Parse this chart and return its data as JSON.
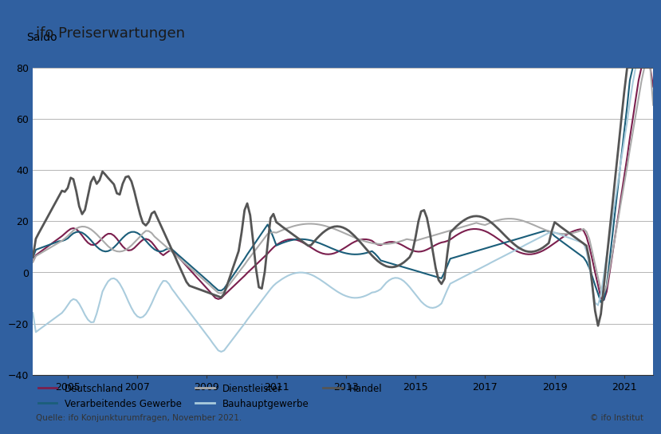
{
  "title": "ifo Preiserwartungen",
  "ylabel": "Saldo",
  "source": "Quelle: ifo Konjunkturumfragen, November 2021.",
  "copyright": "© ifo Institut",
  "ylim": [
    -40,
    80
  ],
  "yticks": [
    -40,
    -20,
    0,
    20,
    40,
    60,
    80
  ],
  "series": {
    "Deutschland": {
      "color": "#7B1F4E",
      "lw": 1.5
    },
    "Verarbeitendes Gewerbe": {
      "color": "#1B5E7A",
      "lw": 1.5
    },
    "Dienstleister": {
      "color": "#AAAAAA",
      "lw": 1.5
    },
    "Bauhauptgewerbe": {
      "color": "#AACCDD",
      "lw": 1.5
    },
    "Handel": {
      "color": "#555555",
      "lw": 2.0
    }
  },
  "border_color": "#3060A0",
  "title_line_color": "#1A1A1A",
  "grid_color": "#AAAAAA",
  "background_color": "#FFFFFF"
}
